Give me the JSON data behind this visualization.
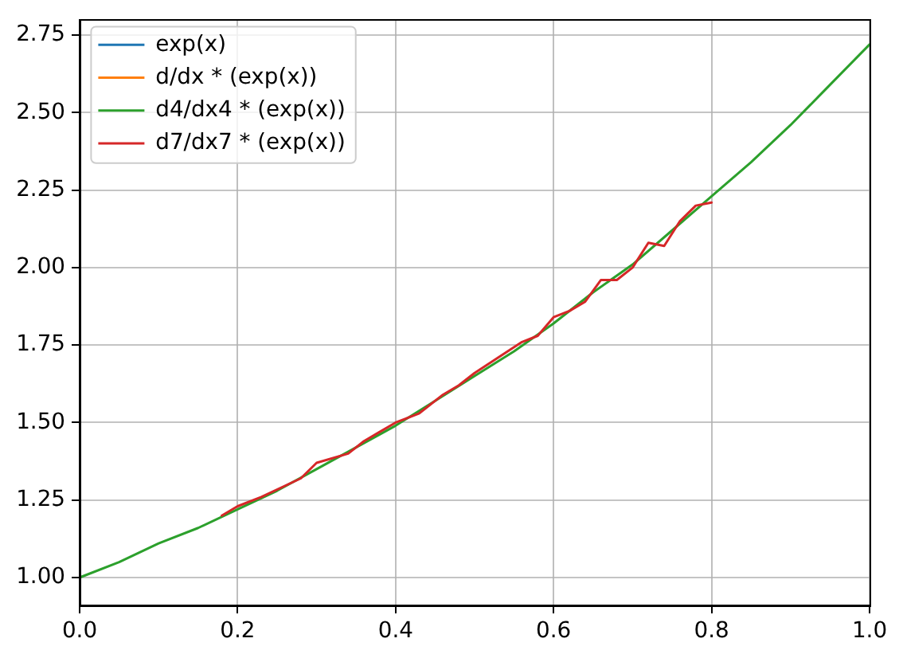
{
  "chart_data": {
    "type": "line",
    "x": [
      0,
      0.05,
      0.1,
      0.15,
      0.2,
      0.25,
      0.3,
      0.35,
      0.4,
      0.45,
      0.5,
      0.55,
      0.6,
      0.65,
      0.7,
      0.75,
      0.8,
      0.85,
      0.9,
      0.95,
      1
    ],
    "series": [
      {
        "name": "exp(x)",
        "color": "#1f77b4",
        "values": [
          null,
          null,
          null,
          null,
          null,
          null,
          null,
          null,
          null,
          null,
          null,
          null,
          null,
          null,
          null,
          null,
          null,
          null,
          null,
          null,
          null
        ]
      },
      {
        "name": "d/dx * (exp(x))",
        "color": "#ff7f0e",
        "values": [
          null,
          null,
          null,
          null,
          null,
          null,
          null,
          null,
          null,
          null,
          null,
          null,
          null,
          null,
          null,
          null,
          null,
          null,
          null,
          null,
          null
        ]
      },
      {
        "name": "d4/dx4 * (exp(x))",
        "color": "#2ca02c",
        "values": [
          1.0,
          1.05,
          1.11,
          1.16,
          1.22,
          1.28,
          1.35,
          1.42,
          1.49,
          1.57,
          1.65,
          1.73,
          1.82,
          1.92,
          2.01,
          2.12,
          2.23,
          2.34,
          2.46,
          2.59,
          2.72
        ]
      },
      {
        "name": "d7/dx7 * (exp(x))",
        "color": "#d62728",
        "x": [
          0.18,
          0.2,
          0.23,
          0.28,
          0.3,
          0.34,
          0.36,
          0.38,
          0.4,
          0.43,
          0.46,
          0.48,
          0.5,
          0.53,
          0.56,
          0.58,
          0.6,
          0.62,
          0.64,
          0.66,
          0.68,
          0.7,
          0.72,
          0.74,
          0.76,
          0.78,
          0.8
        ],
        "values": [
          1.2,
          1.23,
          1.26,
          1.32,
          1.37,
          1.4,
          1.44,
          1.47,
          1.5,
          1.53,
          1.59,
          1.62,
          1.66,
          1.71,
          1.76,
          1.78,
          1.84,
          1.86,
          1.89,
          1.96,
          1.96,
          2.0,
          2.08,
          2.07,
          2.15,
          2.2,
          2.21
        ]
      }
    ],
    "xlim": [
      0,
      1
    ],
    "ylim": [
      0.91,
      2.8
    ],
    "xticks": [
      {
        "value": 0,
        "label": "0.0"
      },
      0.2,
      0.4,
      0.6,
      0.8,
      {
        "value": 1,
        "label": "1.0"
      }
    ],
    "yticks": [
      {
        "value": 1,
        "label": "1.00"
      },
      1.25,
      {
        "value": 1.5,
        "label": "1.50"
      },
      1.75,
      {
        "value": 2,
        "label": "2.00"
      },
      2.25,
      {
        "value": 2.5,
        "label": "2.50"
      },
      2.75
    ],
    "grid": true,
    "legend": "top left"
  }
}
